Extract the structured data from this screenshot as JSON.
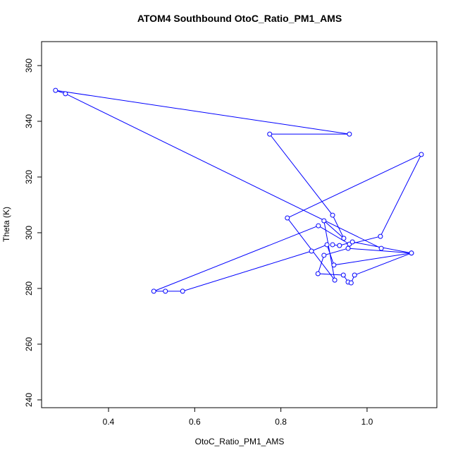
{
  "chart_data": {
    "type": "line",
    "title": "ATOM4 Southbound OtoC_Ratio_PM1_AMS",
    "x_label": "OtoC_Ratio_PM1_AMS",
    "y_label": "Theta (K)",
    "color": "#0000ff",
    "markers": true,
    "x": [
      1.033,
      0.3,
      0.277,
      0.959,
      0.774,
      0.92,
      0.946,
      0.9,
      0.925,
      0.815,
      1.126,
      1.031,
      0.959,
      0.887,
      0.505,
      0.532,
      0.572,
      0.871,
      0.907,
      0.923,
      1.103,
      0.956,
      0.9,
      0.886,
      0.945,
      0.956,
      0.963,
      0.971,
      1.103,
      0.966,
      0.936,
      0.92
    ],
    "y": [
      294.4,
      349.9,
      351.1,
      335.4,
      335.4,
      306.3,
      298.0,
      304.3,
      283.0,
      305.3,
      328.1,
      298.7,
      295.9,
      302.5,
      279.0,
      279.0,
      279.0,
      293.4,
      295.7,
      288.4,
      292.7,
      294.4,
      291.9,
      285.3,
      284.8,
      282.3,
      282.0,
      284.8,
      292.7,
      296.7,
      295.4,
      295.7
    ],
    "xlim": [
      0.2446,
      1.162
    ],
    "ylim": [
      237.2,
      368.6
    ],
    "xticks": [
      0.4,
      0.6,
      0.8,
      {
        "value": 1,
        "label": "1.0"
      }
    ],
    "yticks": [
      240,
      260,
      280,
      300,
      320,
      340,
      360
    ]
  }
}
